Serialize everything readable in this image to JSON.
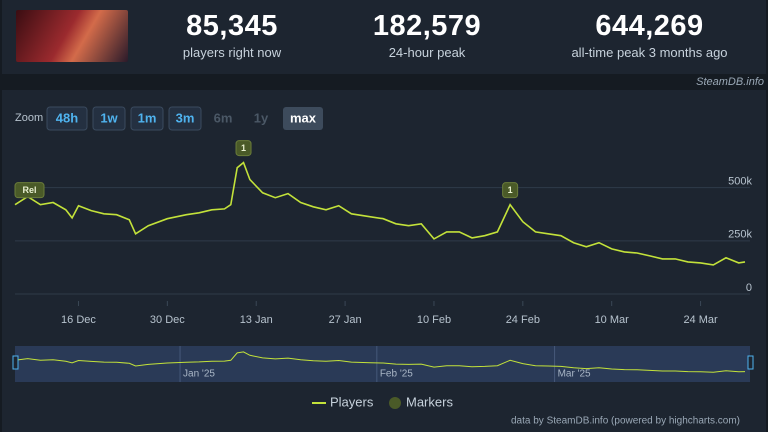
{
  "stats": [
    {
      "value": "85,345",
      "label": "players right now"
    },
    {
      "value": "182,579",
      "label": "24-hour peak"
    },
    {
      "value": "644,269",
      "label": "all-time peak 3 months ago"
    }
  ],
  "source": "SteamDB.info",
  "zoom": {
    "label": "Zoom",
    "buttons": [
      "48h",
      "1w",
      "1m",
      "3m",
      "6m",
      "1y",
      "max"
    ]
  },
  "credits": "data by SteamDB.info (powered by highcharts.com)",
  "chart_data": {
    "type": "line",
    "x": [
      "2024-12-06",
      "2024-12-08",
      "2024-12-10",
      "2024-12-12",
      "2024-12-14",
      "2024-12-15",
      "2024-12-16",
      "2024-12-18",
      "2024-12-20",
      "2024-12-22",
      "2024-12-24",
      "2024-12-25",
      "2024-12-27",
      "2024-12-30",
      "2025-01-02",
      "2025-01-04",
      "2025-01-06",
      "2025-01-08",
      "2025-01-09",
      "2025-01-10",
      "2025-01-11",
      "2025-01-12",
      "2025-01-14",
      "2025-01-16",
      "2025-01-18",
      "2025-01-20",
      "2025-01-22",
      "2025-01-24",
      "2025-01-26",
      "2025-01-28",
      "2025-01-31",
      "2025-02-02",
      "2025-02-04",
      "2025-02-06",
      "2025-02-08",
      "2025-02-10",
      "2025-02-12",
      "2025-02-14",
      "2025-02-16",
      "2025-02-18",
      "2025-02-20",
      "2025-02-22",
      "2025-02-24",
      "2025-02-26",
      "2025-02-28",
      "2025-03-02",
      "2025-03-04",
      "2025-03-06",
      "2025-03-08",
      "2025-03-10",
      "2025-03-12",
      "2025-03-14",
      "2025-03-16",
      "2025-03-18",
      "2025-03-20",
      "2025-03-22",
      "2025-03-24",
      "2025-03-26",
      "2025-03-28",
      "2025-03-30",
      "2025-03-31"
    ],
    "series": [
      {
        "name": "Players",
        "color": "#c3e23a",
        "values": [
          420000,
          458000,
          420000,
          430000,
          396000,
          358000,
          415000,
          392000,
          377000,
          373000,
          349000,
          283000,
          321000,
          354000,
          373000,
          382000,
          396000,
          400000,
          420000,
          594000,
          618000,
          538000,
          476000,
          453000,
          472000,
          430000,
          410000,
          396000,
          415000,
          377000,
          363000,
          354000,
          330000,
          321000,
          330000,
          259000,
          292000,
          292000,
          264000,
          274000,
          292000,
          420000,
          340000,
          292000,
          283000,
          274000,
          241000,
          222000,
          241000,
          212000,
          198000,
          193000,
          179000,
          165000,
          165000,
          151000,
          146000,
          137000,
          170000,
          146000,
          151000
        ]
      }
    ],
    "markers": {
      "name": "Markers",
      "color": "#4a5a28",
      "items": [
        {
          "x": "2024-12-06",
          "label": "Rel"
        },
        {
          "x": "2025-01-11",
          "label": "1"
        },
        {
          "x": "2025-02-22",
          "label": "1"
        }
      ]
    },
    "xlim": [
      "2024-12-06",
      "2025-03-31"
    ],
    "xticks": [
      {
        "value": "2024-12-16",
        "label": "16 Dec"
      },
      {
        "value": "2024-12-30",
        "label": "30 Dec"
      },
      {
        "value": "2025-01-13",
        "label": "13 Jan"
      },
      {
        "value": "2025-01-27",
        "label": "27 Jan"
      },
      {
        "value": "2025-02-10",
        "label": "10 Feb"
      },
      {
        "value": "2025-02-24",
        "label": "24 Feb"
      },
      {
        "value": "2025-03-10",
        "label": "10 Mar"
      },
      {
        "value": "2025-03-24",
        "label": "24 Mar"
      }
    ],
    "ylim": [
      0,
      710000
    ],
    "yticks": [
      0,
      {
        "value": 250000,
        "label": "250k"
      },
      {
        "value": 500000,
        "label": "500k"
      }
    ],
    "navigator_ticks": [
      {
        "value": "2025-01-01",
        "label": "Jan '25"
      },
      {
        "value": "2025-02-01",
        "label": "Feb '25"
      },
      {
        "value": "2025-03-01",
        "label": "Mar '25"
      }
    ],
    "grid": true
  }
}
